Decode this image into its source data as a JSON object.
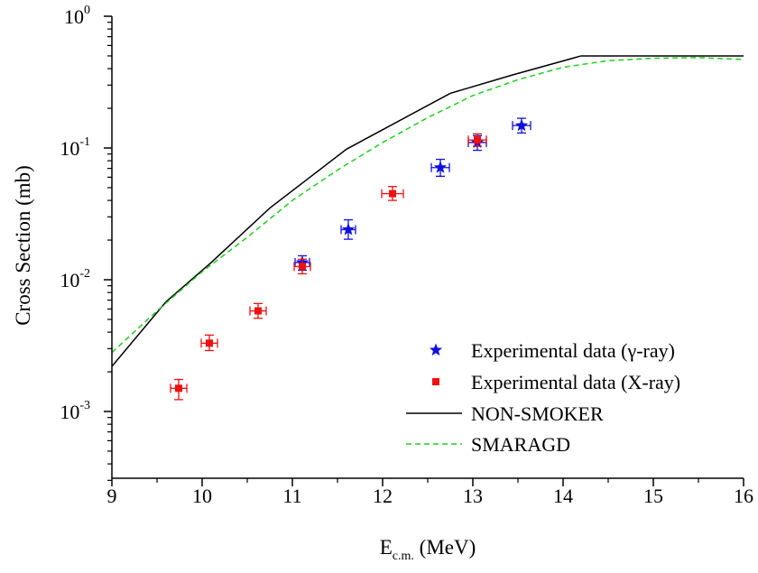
{
  "chart_data": {
    "type": "scatter",
    "title": "",
    "xlabel": {
      "main": "E",
      "subscript": "c.m.",
      "unit": " (MeV)"
    },
    "ylabel": "Cross Section (mb)",
    "xlim": [
      9,
      16
    ],
    "ylim": [
      0.0003,
      1
    ],
    "yscale": "log",
    "x_ticks": [
      "9",
      "10",
      "11",
      "12",
      "13",
      "14",
      "15",
      "16"
    ],
    "y_ticks": [
      {
        "base": "10",
        "exp": "0",
        "value": 1
      },
      {
        "base": "10",
        "exp": "-1",
        "value": 0.1
      },
      {
        "base": "10",
        "exp": "-2",
        "value": 0.01
      },
      {
        "base": "10",
        "exp": "-3",
        "value": 0.001
      }
    ],
    "grid": false,
    "legend_position": "bottom-right",
    "series": [
      {
        "name": "Experimental data (γ-ray)",
        "kind": "points",
        "marker": "star",
        "color": "#1010dd",
        "points": [
          {
            "x": 11.11,
            "y": 0.0135,
            "ylo": 0.0118,
            "yhi": 0.0152,
            "xerr": 0.08
          },
          {
            "x": 11.62,
            "y": 0.024,
            "ylo": 0.0203,
            "yhi": 0.0285,
            "xerr": 0.08
          },
          {
            "x": 12.64,
            "y": 0.071,
            "ylo": 0.061,
            "yhi": 0.082,
            "xerr": 0.1
          },
          {
            "x": 13.05,
            "y": 0.11,
            "ylo": 0.096,
            "yhi": 0.124,
            "xerr": 0.1
          },
          {
            "x": 13.54,
            "y": 0.148,
            "ylo": 0.13,
            "yhi": 0.168,
            "xerr": 0.1
          }
        ]
      },
      {
        "name": "Experimental data (X-ray)",
        "kind": "points",
        "marker": "square",
        "color": "#ee1111",
        "points": [
          {
            "x": 9.74,
            "y": 0.0015,
            "ylo": 0.00123,
            "yhi": 0.00175,
            "xerr": 0.09
          },
          {
            "x": 10.08,
            "y": 0.0033,
            "ylo": 0.0029,
            "yhi": 0.0038,
            "xerr": 0.09
          },
          {
            "x": 10.62,
            "y": 0.0058,
            "ylo": 0.0051,
            "yhi": 0.0066,
            "xerr": 0.09
          },
          {
            "x": 11.11,
            "y": 0.0126,
            "ylo": 0.0111,
            "yhi": 0.0143,
            "xerr": 0.09
          },
          {
            "x": 12.11,
            "y": 0.045,
            "ylo": 0.04,
            "yhi": 0.051,
            "xerr": 0.12
          },
          {
            "x": 13.05,
            "y": 0.115,
            "ylo": 0.103,
            "yhi": 0.128,
            "xerr": 0.1
          }
        ]
      },
      {
        "name": "NON-SMOKER",
        "kind": "line",
        "color": "#000000",
        "dash": "solid",
        "x": [
          9.0,
          9.6,
          10.1,
          10.75,
          11.6,
          12.75,
          13.45,
          14.2,
          15.0,
          16.0
        ],
        "y": [
          0.0022,
          0.0068,
          0.0135,
          0.035,
          0.098,
          0.26,
          0.36,
          0.5,
          0.5,
          0.5
        ]
      },
      {
        "name": "SMARAGD",
        "kind": "line",
        "color": "#22cc22",
        "dash": "dashed",
        "x": [
          9.0,
          9.5,
          10.0,
          10.5,
          11.0,
          11.5,
          12.0,
          12.5,
          13.0,
          13.5,
          14.0,
          14.5,
          15.0,
          15.5,
          16.0
        ],
        "y": [
          0.0028,
          0.0058,
          0.0115,
          0.021,
          0.04,
          0.068,
          0.11,
          0.17,
          0.25,
          0.33,
          0.41,
          0.46,
          0.48,
          0.485,
          0.47
        ]
      }
    ]
  }
}
